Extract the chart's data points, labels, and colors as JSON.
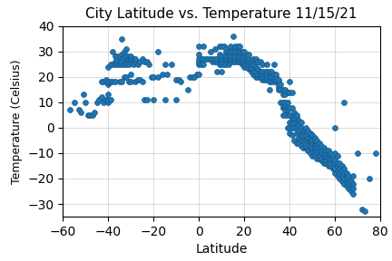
{
  "title": "City Latitude vs. Temperature 11/15/21",
  "xlabel": "Latitude",
  "ylabel": "Temperature (Celsius)",
  "xlim": [
    -60,
    80
  ],
  "ylim": [
    -35,
    40
  ],
  "xticks": [
    -60,
    -40,
    -20,
    0,
    20,
    40,
    60,
    80
  ],
  "yticks": [
    -30,
    -20,
    -10,
    0,
    10,
    20,
    30,
    40
  ],
  "marker_color": "#1f77b4",
  "marker_edge_color": "#17578a",
  "marker_size": 18,
  "grid": true,
  "points": [
    [
      -57,
      7
    ],
    [
      -55,
      10
    ],
    [
      -53,
      7
    ],
    [
      -52,
      6
    ],
    [
      -51,
      13
    ],
    [
      -50,
      10
    ],
    [
      -49,
      5
    ],
    [
      -48,
      5
    ],
    [
      -47,
      5
    ],
    [
      -46,
      6
    ],
    [
      -45,
      10
    ],
    [
      -44,
      11
    ],
    [
      -43,
      12
    ],
    [
      -43,
      18
    ],
    [
      -42,
      10
    ],
    [
      -42,
      18
    ],
    [
      -41,
      11
    ],
    [
      -41,
      19
    ],
    [
      -40,
      10
    ],
    [
      -40,
      11
    ],
    [
      -40,
      13
    ],
    [
      -40,
      17
    ],
    [
      -40,
      18
    ],
    [
      -40,
      24
    ],
    [
      -39,
      11
    ],
    [
      -39,
      18
    ],
    [
      -39,
      25
    ],
    [
      -38,
      18
    ],
    [
      -38,
      25
    ],
    [
      -38,
      30
    ],
    [
      -37,
      18
    ],
    [
      -37,
      25
    ],
    [
      -37,
      26
    ],
    [
      -37,
      28
    ],
    [
      -36,
      25
    ],
    [
      -36,
      26
    ],
    [
      -36,
      27
    ],
    [
      -36,
      28
    ],
    [
      -35,
      18
    ],
    [
      -35,
      25
    ],
    [
      -35,
      26
    ],
    [
      -35,
      28
    ],
    [
      -34,
      18
    ],
    [
      -34,
      25
    ],
    [
      -34,
      26
    ],
    [
      -34,
      29
    ],
    [
      -34,
      35
    ],
    [
      -33,
      20
    ],
    [
      -33,
      25
    ],
    [
      -33,
      28
    ],
    [
      -33,
      30
    ],
    [
      -32,
      20
    ],
    [
      -32,
      25
    ],
    [
      -32,
      27
    ],
    [
      -32,
      28
    ],
    [
      -32,
      31
    ],
    [
      -31,
      18
    ],
    [
      -31,
      25
    ],
    [
      -31,
      27
    ],
    [
      -31,
      28
    ],
    [
      -30,
      18
    ],
    [
      -30,
      21
    ],
    [
      -30,
      26
    ],
    [
      -30,
      27
    ],
    [
      -30,
      28
    ],
    [
      -29,
      25
    ],
    [
      -29,
      27
    ],
    [
      -28,
      18
    ],
    [
      -28,
      26
    ],
    [
      -28,
      27
    ],
    [
      -27,
      19
    ],
    [
      -27,
      25
    ],
    [
      -26,
      19
    ],
    [
      -26,
      26
    ],
    [
      -25,
      18
    ],
    [
      -25,
      27
    ],
    [
      -24,
      11
    ],
    [
      -24,
      26
    ],
    [
      -23,
      11
    ],
    [
      -23,
      26
    ],
    [
      -22,
      25
    ],
    [
      -21,
      20
    ],
    [
      -20,
      11
    ],
    [
      -20,
      20
    ],
    [
      -18,
      20
    ],
    [
      -18,
      30
    ],
    [
      -16,
      21
    ],
    [
      -15,
      11
    ],
    [
      -15,
      25
    ],
    [
      -14,
      21
    ],
    [
      -12,
      25
    ],
    [
      -10,
      11
    ],
    [
      -10,
      19
    ],
    [
      -9,
      19
    ],
    [
      -8,
      18
    ],
    [
      -5,
      15
    ],
    [
      -4,
      20
    ],
    [
      -3,
      20
    ],
    [
      -2,
      20
    ],
    [
      -1,
      21
    ],
    [
      0,
      21
    ],
    [
      0,
      25
    ],
    [
      0,
      26
    ],
    [
      0,
      27
    ],
    [
      0,
      29
    ],
    [
      0,
      32
    ],
    [
      1,
      25
    ],
    [
      1,
      27
    ],
    [
      2,
      25
    ],
    [
      2,
      27
    ],
    [
      2,
      32
    ],
    [
      3,
      27
    ],
    [
      4,
      27
    ],
    [
      5,
      27
    ],
    [
      5,
      30
    ],
    [
      6,
      26
    ],
    [
      6,
      27
    ],
    [
      7,
      26
    ],
    [
      7,
      27
    ],
    [
      7,
      31
    ],
    [
      8,
      22
    ],
    [
      8,
      26
    ],
    [
      8,
      27
    ],
    [
      9,
      25
    ],
    [
      9,
      27
    ],
    [
      9,
      29
    ],
    [
      9,
      32
    ],
    [
      10,
      22
    ],
    [
      10,
      25
    ],
    [
      10,
      26
    ],
    [
      10,
      27
    ],
    [
      10,
      28
    ],
    [
      10,
      32
    ],
    [
      11,
      25
    ],
    [
      11,
      27
    ],
    [
      11,
      28
    ],
    [
      11,
      32
    ],
    [
      12,
      25
    ],
    [
      12,
      27
    ],
    [
      12,
      28
    ],
    [
      12,
      30
    ],
    [
      12,
      31
    ],
    [
      13,
      25
    ],
    [
      13,
      27
    ],
    [
      13,
      28
    ],
    [
      13,
      30
    ],
    [
      14,
      26
    ],
    [
      14,
      27
    ],
    [
      14,
      28
    ],
    [
      14,
      30
    ],
    [
      14,
      32
    ],
    [
      15,
      26
    ],
    [
      15,
      27
    ],
    [
      15,
      28
    ],
    [
      15,
      30
    ],
    [
      15,
      36
    ],
    [
      16,
      26
    ],
    [
      16,
      27
    ],
    [
      16,
      28
    ],
    [
      16,
      30
    ],
    [
      16,
      31
    ],
    [
      16,
      32
    ],
    [
      17,
      26
    ],
    [
      17,
      27
    ],
    [
      17,
      28
    ],
    [
      17,
      30
    ],
    [
      17,
      32
    ],
    [
      18,
      26
    ],
    [
      18,
      27
    ],
    [
      18,
      28
    ],
    [
      18,
      30
    ],
    [
      18,
      32
    ],
    [
      19,
      25
    ],
    [
      19,
      26
    ],
    [
      19,
      27
    ],
    [
      19,
      28
    ],
    [
      19,
      30
    ],
    [
      20,
      24
    ],
    [
      20,
      25
    ],
    [
      20,
      26
    ],
    [
      20,
      27
    ],
    [
      20,
      28
    ],
    [
      20,
      30
    ],
    [
      21,
      24
    ],
    [
      21,
      25
    ],
    [
      21,
      26
    ],
    [
      21,
      27
    ],
    [
      21,
      28
    ],
    [
      22,
      23
    ],
    [
      22,
      24
    ],
    [
      22,
      25
    ],
    [
      22,
      26
    ],
    [
      22,
      27
    ],
    [
      22,
      29
    ],
    [
      23,
      22
    ],
    [
      23,
      23
    ],
    [
      23,
      24
    ],
    [
      23,
      25
    ],
    [
      23,
      26
    ],
    [
      24,
      21
    ],
    [
      24,
      22
    ],
    [
      24,
      25
    ],
    [
      24,
      27
    ],
    [
      25,
      20
    ],
    [
      25,
      21
    ],
    [
      25,
      22
    ],
    [
      25,
      24
    ],
    [
      25,
      26
    ],
    [
      25,
      27
    ],
    [
      26,
      20
    ],
    [
      26,
      21
    ],
    [
      26,
      23
    ],
    [
      26,
      26
    ],
    [
      27,
      20
    ],
    [
      27,
      21
    ],
    [
      27,
      22
    ],
    [
      27,
      26
    ],
    [
      28,
      19
    ],
    [
      28,
      20
    ],
    [
      28,
      21
    ],
    [
      28,
      22
    ],
    [
      28,
      25
    ],
    [
      29,
      19
    ],
    [
      29,
      20
    ],
    [
      29,
      21
    ],
    [
      29,
      22
    ],
    [
      30,
      19
    ],
    [
      30,
      20
    ],
    [
      30,
      21
    ],
    [
      30,
      22
    ],
    [
      30,
      25
    ],
    [
      31,
      15
    ],
    [
      31,
      18
    ],
    [
      31,
      20
    ],
    [
      31,
      22
    ],
    [
      32,
      18
    ],
    [
      32,
      20
    ],
    [
      32,
      22
    ],
    [
      33,
      18
    ],
    [
      33,
      19
    ],
    [
      33,
      20
    ],
    [
      33,
      21
    ],
    [
      33,
      25
    ],
    [
      34,
      18
    ],
    [
      34,
      19
    ],
    [
      34,
      20
    ],
    [
      34,
      21
    ],
    [
      35,
      15
    ],
    [
      35,
      16
    ],
    [
      35,
      17
    ],
    [
      35,
      18
    ],
    [
      35,
      19
    ],
    [
      36,
      10
    ],
    [
      36,
      15
    ],
    [
      36,
      17
    ],
    [
      37,
      5
    ],
    [
      37,
      8
    ],
    [
      37,
      9
    ],
    [
      37,
      10
    ],
    [
      37,
      13
    ],
    [
      37,
      15
    ],
    [
      38,
      5
    ],
    [
      38,
      7
    ],
    [
      38,
      9
    ],
    [
      38,
      10
    ],
    [
      38,
      13
    ],
    [
      38,
      15
    ],
    [
      39,
      0
    ],
    [
      39,
      5
    ],
    [
      39,
      7
    ],
    [
      39,
      10
    ],
    [
      39,
      14
    ],
    [
      40,
      -2
    ],
    [
      40,
      0
    ],
    [
      40,
      2
    ],
    [
      40,
      5
    ],
    [
      40,
      8
    ],
    [
      40,
      14
    ],
    [
      40,
      18
    ],
    [
      41,
      -3
    ],
    [
      41,
      0
    ],
    [
      41,
      2
    ],
    [
      41,
      4
    ],
    [
      41,
      8
    ],
    [
      41,
      14
    ],
    [
      42,
      -5
    ],
    [
      42,
      0
    ],
    [
      42,
      2
    ],
    [
      42,
      4
    ],
    [
      42,
      5
    ],
    [
      42,
      6
    ],
    [
      43,
      -6
    ],
    [
      43,
      -2
    ],
    [
      43,
      0
    ],
    [
      43,
      2
    ],
    [
      43,
      4
    ],
    [
      43,
      5
    ],
    [
      44,
      -6
    ],
    [
      44,
      -4
    ],
    [
      44,
      -1
    ],
    [
      44,
      1
    ],
    [
      44,
      3
    ],
    [
      45,
      -7
    ],
    [
      45,
      -5
    ],
    [
      45,
      -3
    ],
    [
      45,
      0
    ],
    [
      45,
      2
    ],
    [
      46,
      -8
    ],
    [
      46,
      -5
    ],
    [
      46,
      -3
    ],
    [
      46,
      -1
    ],
    [
      47,
      -8
    ],
    [
      47,
      -7
    ],
    [
      47,
      -5
    ],
    [
      47,
      -3
    ],
    [
      47,
      -1
    ],
    [
      47,
      0
    ],
    [
      48,
      -9
    ],
    [
      48,
      -7
    ],
    [
      48,
      -5
    ],
    [
      48,
      -4
    ],
    [
      48,
      -2
    ],
    [
      48,
      -1
    ],
    [
      49,
      -10
    ],
    [
      49,
      -8
    ],
    [
      49,
      -7
    ],
    [
      49,
      -5
    ],
    [
      49,
      -4
    ],
    [
      49,
      -2
    ],
    [
      50,
      -11
    ],
    [
      50,
      -9
    ],
    [
      50,
      -8
    ],
    [
      50,
      -6
    ],
    [
      50,
      -5
    ],
    [
      50,
      -3
    ],
    [
      51,
      -11
    ],
    [
      51,
      -9
    ],
    [
      51,
      -8
    ],
    [
      51,
      -7
    ],
    [
      51,
      -5
    ],
    [
      51,
      -4
    ],
    [
      52,
      -12
    ],
    [
      52,
      -10
    ],
    [
      52,
      -9
    ],
    [
      52,
      -8
    ],
    [
      52,
      -6
    ],
    [
      52,
      -5
    ],
    [
      53,
      -12
    ],
    [
      53,
      -11
    ],
    [
      53,
      -9
    ],
    [
      53,
      -8
    ],
    [
      53,
      -6
    ],
    [
      54,
      -13
    ],
    [
      54,
      -12
    ],
    [
      54,
      -10
    ],
    [
      54,
      -9
    ],
    [
      54,
      -7
    ],
    [
      55,
      -14
    ],
    [
      55,
      -13
    ],
    [
      55,
      -11
    ],
    [
      55,
      -10
    ],
    [
      55,
      -8
    ],
    [
      56,
      -14
    ],
    [
      56,
      -13
    ],
    [
      56,
      -11
    ],
    [
      56,
      -10
    ],
    [
      56,
      -9
    ],
    [
      57,
      -15
    ],
    [
      57,
      -14
    ],
    [
      57,
      -12
    ],
    [
      57,
      -10
    ],
    [
      57,
      -9
    ],
    [
      58,
      -15
    ],
    [
      58,
      -14
    ],
    [
      58,
      -12
    ],
    [
      58,
      -10
    ],
    [
      59,
      -16
    ],
    [
      59,
      -15
    ],
    [
      59,
      -13
    ],
    [
      59,
      -12
    ],
    [
      60,
      -18
    ],
    [
      60,
      -16
    ],
    [
      60,
      -14
    ],
    [
      60,
      -13
    ],
    [
      60,
      -10
    ],
    [
      60,
      0
    ],
    [
      61,
      -19
    ],
    [
      61,
      -17
    ],
    [
      61,
      -15
    ],
    [
      61,
      -14
    ],
    [
      61,
      -11
    ],
    [
      62,
      -20
    ],
    [
      62,
      -18
    ],
    [
      62,
      -16
    ],
    [
      62,
      -14
    ],
    [
      63,
      -21
    ],
    [
      63,
      -19
    ],
    [
      63,
      -17
    ],
    [
      63,
      -15
    ],
    [
      64,
      -22
    ],
    [
      64,
      -20
    ],
    [
      64,
      -18
    ],
    [
      64,
      -16
    ],
    [
      64,
      10
    ],
    [
      65,
      -23
    ],
    [
      65,
      -21
    ],
    [
      65,
      -20
    ],
    [
      65,
      -18
    ],
    [
      66,
      -24
    ],
    [
      66,
      -22
    ],
    [
      66,
      -20
    ],
    [
      66,
      -19
    ],
    [
      67,
      -25
    ],
    [
      67,
      -23
    ],
    [
      67,
      -21
    ],
    [
      68,
      -26
    ],
    [
      68,
      -24
    ],
    [
      68,
      -22
    ],
    [
      68,
      -19
    ],
    [
      70,
      -10
    ],
    [
      72,
      -32
    ],
    [
      73,
      -33
    ],
    [
      75,
      -20
    ],
    [
      78,
      -10
    ]
  ]
}
